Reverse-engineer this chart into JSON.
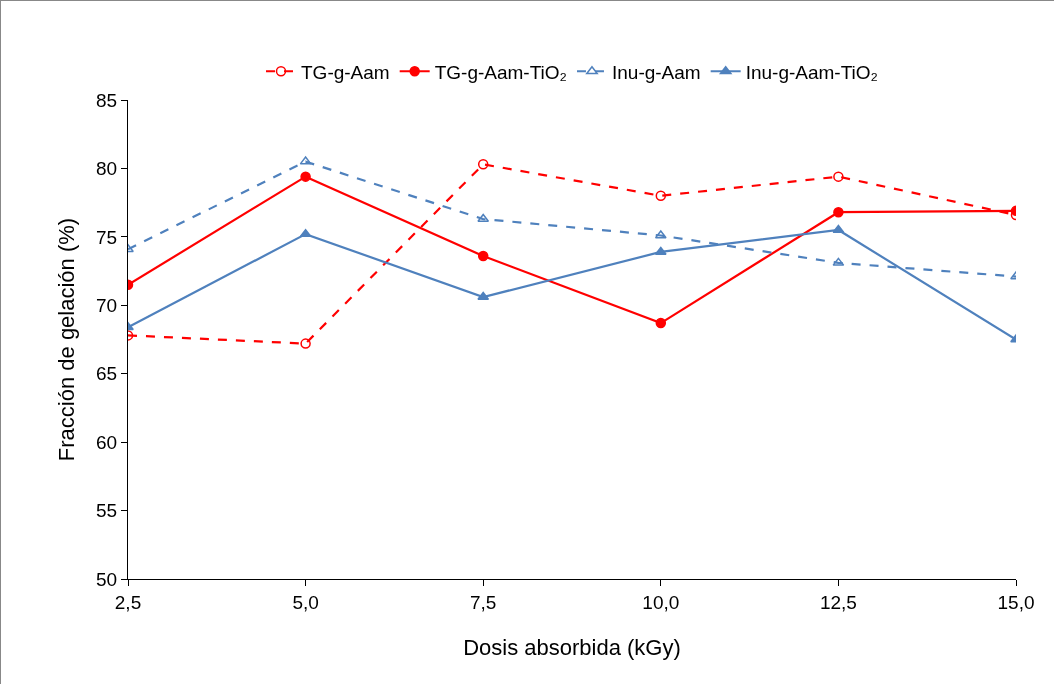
{
  "chart_data": {
    "type": "line",
    "xlabel": "Dosis absorbida (kGy)",
    "ylabel": "Fracción de gelación (%)",
    "x": [
      2.5,
      5,
      7.5,
      10,
      12.5,
      15
    ],
    "series": [
      {
        "name": "TG-g-Aam",
        "color": "#ff0000",
        "line_style": "dashed",
        "marker": "circle-open",
        "values": [
          67.8,
          67.2,
          80.3,
          78.0,
          79.4,
          76.6
        ]
      },
      {
        "name": "TG-g-Aam-TiO₂",
        "color": "#ff0000",
        "line_style": "solid",
        "marker": "circle",
        "values": [
          71.5,
          79.4,
          73.6,
          68.7,
          76.8,
          76.9
        ]
      },
      {
        "name": "Inu-g-Aam",
        "color": "#4f81bd",
        "line_style": "dashed",
        "marker": "triangle-open",
        "values": [
          74.1,
          80.5,
          76.3,
          75.1,
          73.1,
          72.1
        ]
      },
      {
        "name": "Inu-g-Aam-TiO₂",
        "color": "#4f81bd",
        "line_style": "solid",
        "marker": "triangle",
        "values": [
          68.4,
          75.2,
          70.6,
          73.9,
          75.5,
          67.5
        ]
      }
    ],
    "xlim": [
      2.5,
      15
    ],
    "xticks": [
      {
        "value": 2.5,
        "label": "2,5"
      },
      {
        "value": 5,
        "label": "5,0"
      },
      {
        "value": 7.5,
        "label": "7,5"
      },
      {
        "value": 10,
        "label": "10,0"
      },
      {
        "value": 12.5,
        "label": "12,5"
      },
      {
        "value": 15,
        "label": "15,0"
      }
    ],
    "ylim": [
      50,
      85
    ],
    "yticks": [
      50,
      55,
      60,
      65,
      70,
      75,
      80,
      85
    ],
    "grid": false,
    "legend": "top"
  }
}
